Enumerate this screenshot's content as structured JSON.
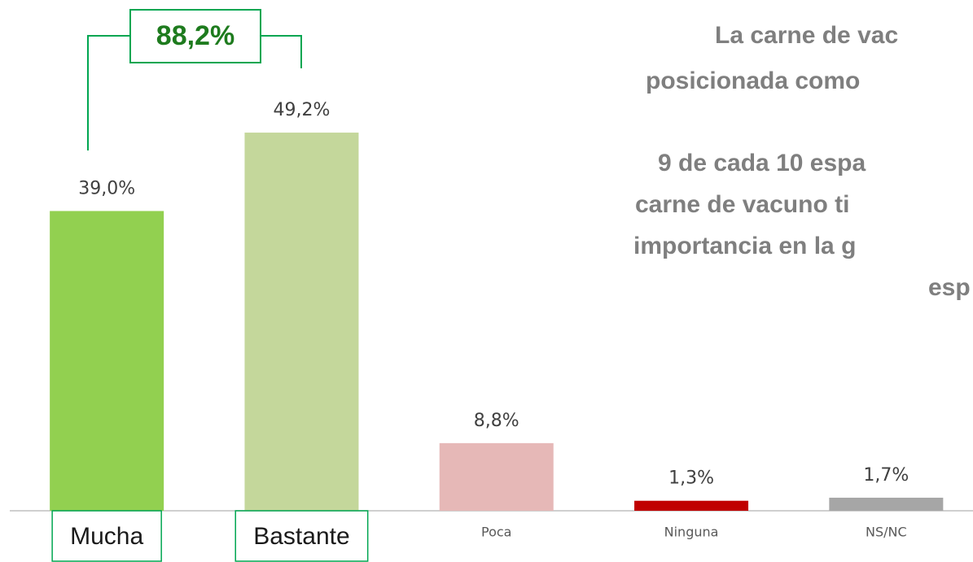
{
  "chart_data": {
    "type": "bar",
    "categories": [
      "Mucha",
      "Bastante",
      "Poca",
      "Ninguna",
      "NS/NC"
    ],
    "values": [
      39.0,
      49.2,
      8.8,
      1.3,
      1.7
    ],
    "value_labels": [
      "39,0%",
      "49,2%",
      "8,8%",
      "1,3%",
      "1,7%"
    ],
    "colors": [
      "#92d050",
      "#c4d79b",
      "#e6b8b7",
      "#c00000",
      "#a6a6a6"
    ],
    "highlighted_categories": [
      0,
      1
    ],
    "ylim": [
      0,
      50
    ],
    "total_annotation": "88,2%",
    "text_lines": [
      "La carne de vac",
      "posicionada como",
      "9 de cada 10 espa",
      "carne de vacuno ti",
      "importancia en la g",
      "esp"
    ]
  }
}
